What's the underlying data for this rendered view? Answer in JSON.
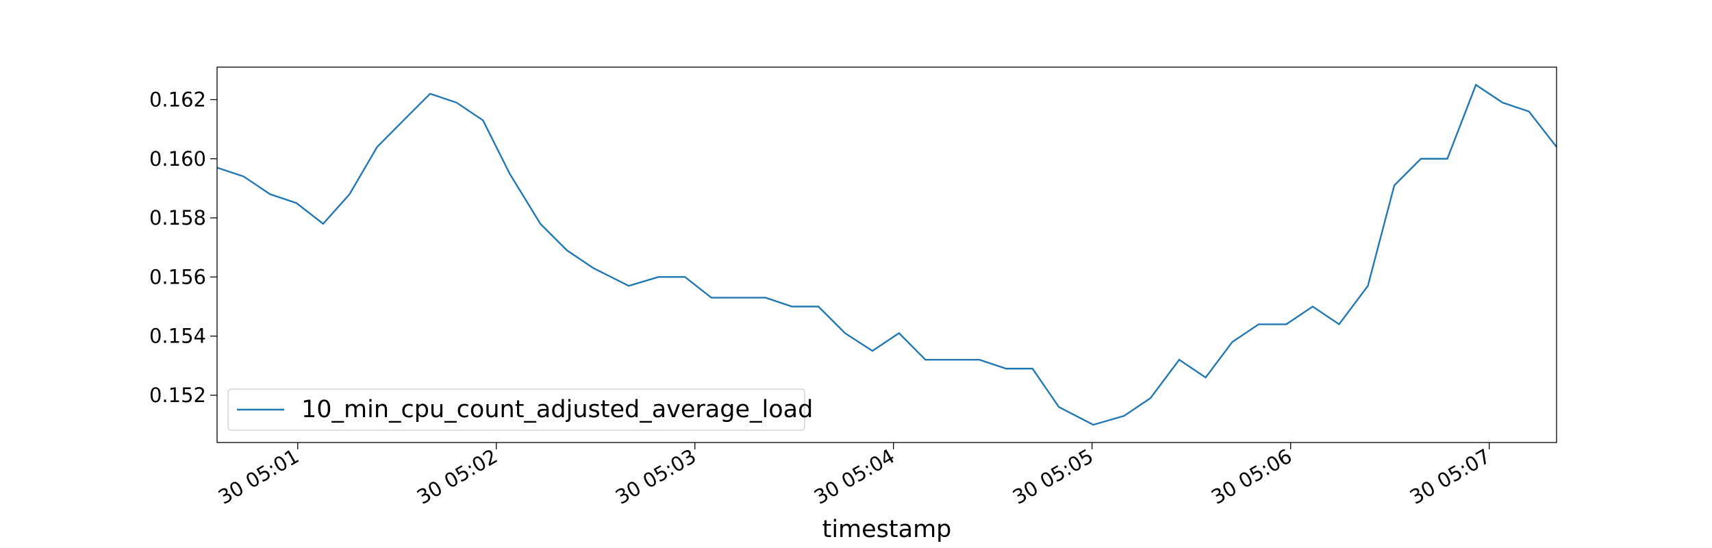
{
  "chart_data": {
    "type": "line",
    "x_label": "timestamp",
    "x": [
      300.594,
      300.728,
      300.861,
      300.994,
      301.128,
      301.261,
      301.4,
      301.533,
      301.667,
      301.8,
      301.933,
      302.067,
      302.222,
      302.356,
      302.489,
      302.667,
      302.817,
      302.95,
      303.083,
      303.217,
      303.356,
      303.489,
      303.622,
      303.756,
      303.894,
      304.028,
      304.161,
      304.294,
      304.433,
      304.567,
      304.7,
      304.833,
      305.006,
      305.161,
      305.294,
      305.439,
      305.572,
      305.706,
      305.839,
      305.978,
      306.111,
      306.244,
      306.389,
      306.522,
      306.656,
      306.789,
      306.933,
      307.067,
      307.2,
      307.339
    ],
    "series": [
      {
        "name": "10_min_cpu_count_adjusted_average_load",
        "color": "#1f77b4",
        "values": [
          0.1597,
          0.1594,
          0.1588,
          0.1585,
          0.1578,
          0.1588,
          0.1604,
          0.1613,
          0.1622,
          0.1619,
          0.1613,
          0.1595,
          0.1578,
          0.1569,
          0.1563,
          0.1557,
          0.156,
          0.156,
          0.1553,
          0.1553,
          0.1553,
          0.155,
          0.155,
          0.1541,
          0.1535,
          0.1541,
          0.1532,
          0.1532,
          0.1532,
          0.1529,
          0.1529,
          0.1516,
          0.151,
          0.1513,
          0.1519,
          0.1532,
          0.1526,
          0.1538,
          0.1544,
          0.1544,
          0.155,
          0.1544,
          0.1557,
          0.1591,
          0.16,
          0.16,
          0.1625,
          0.1619,
          0.1616,
          0.1604
        ]
      }
    ],
    "xlim": [
      300.594,
      307.339
    ],
    "xticks": [
      {
        "value": 301,
        "label": "30 05:01"
      },
      {
        "value": 302,
        "label": "30 05:02"
      },
      {
        "value": 303,
        "label": "30 05:03"
      },
      {
        "value": 304,
        "label": "30 05:04"
      },
      {
        "value": 305,
        "label": "30 05:05"
      },
      {
        "value": 306,
        "label": "30 05:06"
      },
      {
        "value": 307,
        "label": "30 05:07"
      }
    ],
    "ylim": [
      0.1504,
      0.1631
    ],
    "yticks": [
      0.152,
      0.154,
      0.156,
      0.158,
      {
        "value": 0.16,
        "label": "0.160"
      },
      0.162
    ],
    "legend": "lower left",
    "grid": false
  }
}
